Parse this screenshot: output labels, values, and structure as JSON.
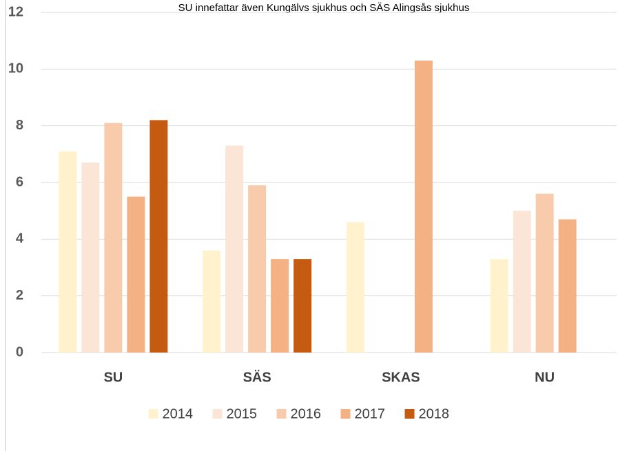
{
  "chart_data": {
    "type": "bar",
    "title": "SU innefattar även Kungälvs sjukhus och SÄS Alingsås sjukhus",
    "categories": [
      "SU",
      "SÄS",
      "SKAS",
      "NU"
    ],
    "series": [
      {
        "name": "2014",
        "color": "#fff2cc",
        "values": [
          7.1,
          3.6,
          4.6,
          3.3
        ]
      },
      {
        "name": "2015",
        "color": "#fbe5d6",
        "values": [
          6.7,
          7.3,
          null,
          5.0
        ]
      },
      {
        "name": "2016",
        "color": "#f8cbad",
        "values": [
          8.1,
          5.9,
          null,
          5.6
        ]
      },
      {
        "name": "2017",
        "color": "#f4b183",
        "values": [
          5.5,
          3.3,
          10.3,
          4.7
        ]
      },
      {
        "name": "2018",
        "color": "#c55a11",
        "values": [
          8.2,
          3.3,
          null,
          null
        ]
      }
    ],
    "ylim": [
      0,
      12
    ],
    "yticks": [
      0,
      2,
      4,
      6,
      8,
      10,
      12
    ],
    "grid": true,
    "legend": "bottom"
  }
}
